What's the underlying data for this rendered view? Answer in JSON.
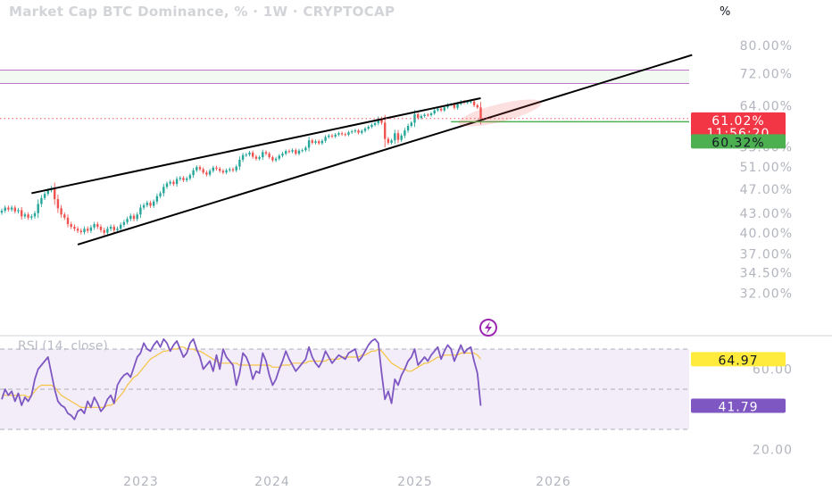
{
  "header": {
    "title": "Market Cap BTC Dominance, % · 1W · CRYPTOCAP",
    "unit_label": "%"
  },
  "price_axis": {
    "ticks": [
      {
        "value": 80,
        "label": "80.00%"
      },
      {
        "value": 72,
        "label": "72.00%"
      },
      {
        "value": 64,
        "label": "64.00%"
      },
      {
        "value": 55,
        "label": "55.00%"
      },
      {
        "value": 51,
        "label": "51.00%"
      },
      {
        "value": 47,
        "label": "47.00%"
      },
      {
        "value": 43,
        "label": "43.00%"
      },
      {
        "value": 40,
        "label": "40.00%"
      },
      {
        "value": 37,
        "label": "37.00%"
      },
      {
        "value": 34.5,
        "label": "34.50%"
      },
      {
        "value": 32,
        "label": "32.00%"
      }
    ]
  },
  "badges": {
    "current_price": "61.02%",
    "countdown": "11:56:20",
    "support": "60.32%",
    "rsi_ma": "64.97",
    "rsi_value": "41.79"
  },
  "rsi_panel": {
    "title": "RSI (14, close)",
    "axis": [
      {
        "value": 60,
        "label": "60.00"
      },
      {
        "value": 20,
        "label": "20.00"
      }
    ],
    "upper_band": 70,
    "mid_band": 50,
    "lower_band": 30
  },
  "time_axis": [
    "2023",
    "2024",
    "2025",
    "2026"
  ],
  "colors": {
    "up": "#26a69a",
    "down": "#ef5350",
    "rsi_line": "#7e57c2",
    "rsi_ma": "#f6c342",
    "rsi_bg": "#ede7f6",
    "current_badge": "#f23645",
    "support_badge": "#4caf50",
    "rsi_ma_badge": "#ffeb3b",
    "rsi_badge": "#7e57c2",
    "resistance_band": "#e8f5e9",
    "trendline": "#000000"
  },
  "icons": {
    "lightning": "lightning-icon"
  },
  "chart_data": {
    "type": "candlestick",
    "title": "Market Cap BTC Dominance, % · 1W · CRYPTOCAP",
    "y_scale": "log",
    "ylim": [
      29.5,
      84
    ],
    "x_ticks": [
      "2023",
      "2024",
      "2025",
      "2026"
    ],
    "last_value": 61.02,
    "support_level": 60.32,
    "resistance_zone": [
      69.5,
      73
    ],
    "closes": [
      43.4,
      43.9,
      43.6,
      43.9,
      43.3,
      43.5,
      42.5,
      42.8,
      42.3,
      42.5,
      43.0,
      44.5,
      45.5,
      46.2,
      46.8,
      47.2,
      45.3,
      43.8,
      42.8,
      42.3,
      41.3,
      40.9,
      40.6,
      40.3,
      40.1,
      40.6,
      40.3,
      40.8,
      41.3,
      40.9,
      40.4,
      40.0,
      40.6,
      40.9,
      40.4,
      40.6,
      41.2,
      41.6,
      42.1,
      42.6,
      42.1,
      42.8,
      43.9,
      44.3,
      44.7,
      44.2,
      44.9,
      45.8,
      46.3,
      47.4,
      48.0,
      48.3,
      47.9,
      48.8,
      49.0,
      48.6,
      48.9,
      49.5,
      50.4,
      51.0,
      50.6,
      50.0,
      49.6,
      50.3,
      50.9,
      50.7,
      50.3,
      50.0,
      50.4,
      50.6,
      50.4,
      51.1,
      52.4,
      53.3,
      53.4,
      53.8,
      53.0,
      52.6,
      52.9,
      53.9,
      53.6,
      52.9,
      52.3,
      52.6,
      53.2,
      53.6,
      54.1,
      54.0,
      54.3,
      53.6,
      54.2,
      54.3,
      54.8,
      56.3,
      55.8,
      56.1,
      55.7,
      56.2,
      57.0,
      57.3,
      57.1,
      57.5,
      57.8,
      57.6,
      57.5,
      58.0,
      58.2,
      58.4,
      57.9,
      58.3,
      58.8,
      59.2,
      59.6,
      60.0,
      61.0,
      60.1,
      56.6,
      55.8,
      56.3,
      57.8,
      56.4,
      57.3,
      58.4,
      59.4,
      60.1,
      62.0,
      61.2,
      61.6,
      61.9,
      61.8,
      62.2,
      62.9,
      63.3,
      62.9,
      63.6,
      64.2,
      64.3,
      63.5,
      64.4,
      65.0,
      64.7,
      64.9,
      65.0,
      64.1,
      63.6,
      61.0
    ],
    "rsi": [
      45,
      50,
      47,
      49,
      44,
      48,
      42,
      46,
      44,
      47,
      55,
      60,
      62,
      64,
      66,
      58,
      50,
      44,
      42,
      41,
      38,
      37,
      35,
      39,
      40,
      38,
      44,
      41,
      46,
      43,
      39,
      41,
      45,
      47,
      43,
      52,
      55,
      57,
      58,
      56,
      61,
      66,
      68,
      73,
      70,
      69,
      72,
      74,
      71,
      75,
      73,
      69,
      72,
      74,
      70,
      66,
      68,
      73,
      75,
      70,
      66,
      60,
      62,
      64,
      59,
      67,
      60,
      70,
      66,
      64,
      62,
      52,
      58,
      68,
      66,
      62,
      55,
      59,
      58,
      68,
      64,
      57,
      52,
      55,
      60,
      64,
      69,
      65,
      62,
      59,
      61,
      63,
      65,
      71,
      66,
      63,
      61,
      64,
      69,
      66,
      63,
      65,
      67,
      66,
      65,
      68,
      69,
      70,
      64,
      66,
      69,
      72,
      74,
      75,
      73,
      58,
      45,
      49,
      43,
      55,
      52,
      57,
      60,
      64,
      66,
      70,
      62,
      64,
      66,
      64,
      67,
      69,
      71,
      65,
      69,
      72,
      70,
      64,
      68,
      72,
      68,
      70,
      71,
      64,
      58,
      41.79
    ],
    "rsi_ma": [
      47,
      47,
      47,
      47,
      47,
      47,
      47,
      47,
      46,
      47,
      49,
      51,
      52,
      52,
      52,
      52,
      51,
      49,
      47,
      46,
      45,
      44,
      43,
      42,
      41,
      41,
      41,
      41,
      41,
      41,
      41,
      41,
      42,
      42,
      43,
      45,
      47,
      49,
      52,
      54,
      56,
      57,
      59,
      61,
      63,
      65,
      66,
      67,
      68,
      69,
      69,
      70,
      70,
      70,
      71,
      71,
      70,
      70,
      70,
      69,
      69,
      68,
      67,
      66,
      65,
      64,
      63,
      63,
      63,
      63,
      63,
      63,
      62,
      62,
      62,
      62,
      62,
      62,
      62,
      62,
      62,
      62,
      61,
      61,
      61,
      62,
      62,
      62,
      63,
      63,
      63,
      63,
      63,
      64,
      64,
      64,
      64,
      64,
      64,
      65,
      65,
      65,
      65,
      66,
      66,
      66,
      66,
      66,
      66,
      67,
      67,
      68,
      69,
      69,
      70,
      69,
      67,
      65,
      63,
      62,
      61,
      60,
      60,
      59,
      59,
      60,
      61,
      62,
      63,
      63,
      64,
      65,
      66,
      66,
      67,
      67,
      67,
      67,
      67,
      68,
      68,
      68,
      68,
      68,
      67,
      64.97
    ]
  }
}
